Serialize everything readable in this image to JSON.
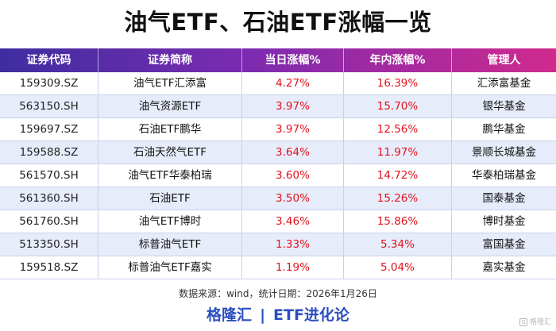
{
  "title": "油气ETF、石油ETF涨幅一览",
  "table": {
    "headers": [
      "证券代码",
      "证券简称",
      "当日涨幅%",
      "年内涨幅%",
      "管理人"
    ],
    "rows": [
      {
        "code": "159309.SZ",
        "name": "油气ETF汇添富",
        "day": "4.27%",
        "ytd": "16.39%",
        "manager": "汇添富基金"
      },
      {
        "code": "563150.SH",
        "name": "油气资源ETF",
        "day": "3.97%",
        "ytd": "15.70%",
        "manager": "银华基金"
      },
      {
        "code": "159697.SZ",
        "name": "石油ETF鹏华",
        "day": "3.97%",
        "ytd": "12.56%",
        "manager": "鹏华基金"
      },
      {
        "code": "159588.SZ",
        "name": "石油天然气ETF",
        "day": "3.64%",
        "ytd": "11.97%",
        "manager": "景顺长城基金"
      },
      {
        "code": "561570.SH",
        "name": "油气ETF华泰柏瑞",
        "day": "3.60%",
        "ytd": "14.72%",
        "manager": "华泰柏瑞基金"
      },
      {
        "code": "561360.SH",
        "name": "石油ETF",
        "day": "3.50%",
        "ytd": "15.26%",
        "manager": "国泰基金"
      },
      {
        "code": "561760.SH",
        "name": "油气ETF博时",
        "day": "3.46%",
        "ytd": "15.86%",
        "manager": "博时基金"
      },
      {
        "code": "513350.SH",
        "name": "标普油气ETF",
        "day": "1.33%",
        "ytd": "5.34%",
        "manager": "富国基金"
      },
      {
        "code": "159518.SZ",
        "name": "标普油气ETF嘉实",
        "day": "1.19%",
        "ytd": "5.04%",
        "manager": "嘉实基金"
      }
    ]
  },
  "source_note": "数据来源：wind，统计日期：2026年1月26日",
  "footer": {
    "brand": "格隆汇",
    "separator": "|",
    "column": "ETF进化论"
  },
  "watermark": {
    "text": "格隆汇"
  },
  "colors": {
    "header_gradient_start": "#3d2ea0",
    "header_gradient_end": "#d02a8e",
    "stripe": "#e7ecfa",
    "up_red": "#e0121c",
    "footer_blue": "#2c4fbf"
  }
}
